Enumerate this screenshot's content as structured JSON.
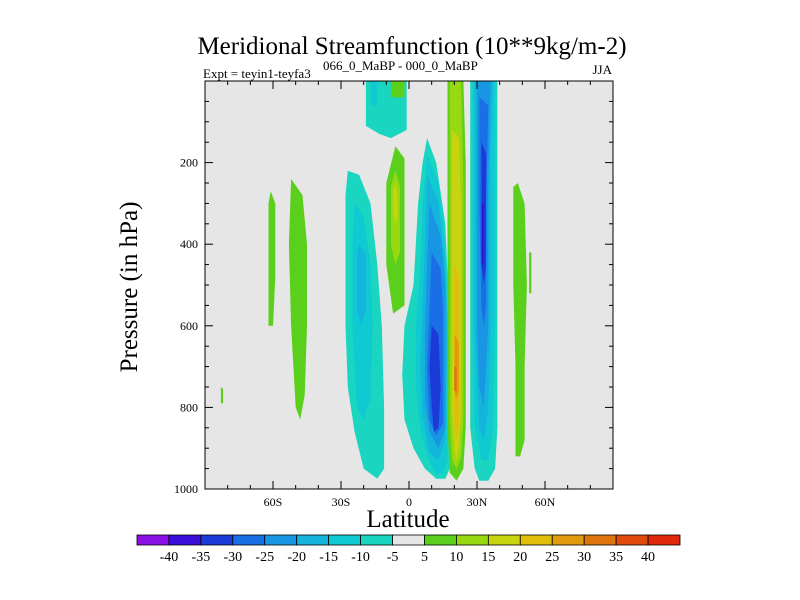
{
  "chart_data": {
    "type": "heatmap",
    "title": "Meridional Streamfunction (10**9kg/m-2)",
    "subtitle_left": "Expt = teyin1-teyfa3",
    "subtitle_superscript": "066_0_MaBP - 000_0_MaBP",
    "subtitle_right": "JJA",
    "xlabel": "Latitude",
    "ylabel": "Pressure (in hPa)",
    "xlim": [
      -90,
      90
    ],
    "ylim": [
      1000,
      0
    ],
    "x_ticks": [
      {
        "value": -60,
        "label": "60S"
      },
      {
        "value": -30,
        "label": "30S"
      },
      {
        "value": 0,
        "label": "0"
      },
      {
        "value": 30,
        "label": "30N"
      },
      {
        "value": 60,
        "label": "60N"
      }
    ],
    "y_ticks": [
      {
        "value": 200,
        "label": "200"
      },
      {
        "value": 400,
        "label": "400"
      },
      {
        "value": 600,
        "label": "600"
      },
      {
        "value": 800,
        "label": "800"
      },
      {
        "value": 1000,
        "label": "1000"
      }
    ],
    "background_color": "#e6e6e6",
    "colorbar": {
      "labels": [
        "-40",
        "-35",
        "-30",
        "-25",
        "-20",
        "-15",
        "-10",
        "-5",
        "5",
        "10",
        "15",
        "20",
        "25",
        "30",
        "35",
        "40"
      ],
      "colors": [
        "#8b10e8",
        "#3c0fd8",
        "#1c3ad8",
        "#1a6ee6",
        "#1896e4",
        "#14b4dc",
        "#10cad2",
        "#1ad6c0",
        "#e6e6e6",
        "#5ad01c",
        "#98d810",
        "#c8d410",
        "#e0be0c",
        "#e09c0c",
        "#e0740c",
        "#e04a0c",
        "#e0280c"
      ]
    },
    "regions": [
      {
        "level": 10,
        "color": "#5ad01c",
        "pts": [
          [
            -61,
            270
          ],
          [
            -59,
            300
          ],
          [
            -59,
            480
          ],
          [
            -60,
            600
          ],
          [
            -62,
            600
          ],
          [
            -62,
            400
          ],
          [
            -62,
            300
          ]
        ]
      },
      {
        "level": 10,
        "color": "#5ad01c",
        "pts": [
          [
            -52,
            240
          ],
          [
            -47,
            280
          ],
          [
            -45,
            400
          ],
          [
            -45,
            600
          ],
          [
            -46,
            770
          ],
          [
            -48,
            830
          ],
          [
            -50,
            800
          ],
          [
            -52,
            600
          ],
          [
            -53,
            400
          ]
        ]
      },
      {
        "level": 10,
        "color": "#5ad01c",
        "pts": [
          [
            -83,
            750
          ],
          [
            -82,
            755
          ],
          [
            -82,
            790
          ],
          [
            -83,
            790
          ]
        ]
      },
      {
        "level": -5,
        "color": "#1ad6c0",
        "pts": [
          [
            -27,
            220
          ],
          [
            -22,
            230
          ],
          [
            -17,
            300
          ],
          [
            -14,
            450
          ],
          [
            -12,
            600
          ],
          [
            -11,
            800
          ],
          [
            -11,
            950
          ],
          [
            -14,
            975
          ],
          [
            -20,
            950
          ],
          [
            -24,
            860
          ],
          [
            -27,
            750
          ],
          [
            -28,
            600
          ],
          [
            -28,
            400
          ],
          [
            -28,
            280
          ]
        ]
      },
      {
        "level": -10,
        "color": "#10cad2",
        "pts": [
          [
            -24,
            300
          ],
          [
            -20,
            330
          ],
          [
            -17,
            450
          ],
          [
            -16,
            600
          ],
          [
            -17,
            780
          ],
          [
            -20,
            830
          ],
          [
            -23,
            800
          ],
          [
            -25,
            600
          ],
          [
            -25,
            400
          ]
        ]
      },
      {
        "level": -15,
        "color": "#14b4dc",
        "pts": [
          [
            -22,
            400
          ],
          [
            -19,
            430
          ],
          [
            -19,
            560
          ],
          [
            -21,
            600
          ],
          [
            -23,
            560
          ],
          [
            -23,
            430
          ]
        ]
      },
      {
        "level": -5,
        "color": "#1ad6c0",
        "pts": [
          [
            -19,
            0
          ],
          [
            -1,
            0
          ],
          [
            -1,
            120
          ],
          [
            -8,
            140
          ],
          [
            -13,
            130
          ],
          [
            -19,
            110
          ]
        ]
      },
      {
        "level": -10,
        "color": "#10cad2",
        "pts": [
          [
            -17,
            0
          ],
          [
            -14,
            0
          ],
          [
            -14,
            60
          ],
          [
            -17,
            60
          ]
        ]
      },
      {
        "level": 10,
        "color": "#5ad01c",
        "pts": [
          [
            -8,
            0
          ],
          [
            -2,
            0
          ],
          [
            -2,
            40
          ],
          [
            -8,
            40
          ]
        ]
      },
      {
        "level": 10,
        "color": "#5ad01c",
        "pts": [
          [
            -6,
            160
          ],
          [
            -2,
            190
          ],
          [
            -2,
            550
          ],
          [
            -7,
            570
          ],
          [
            -10,
            450
          ],
          [
            -10,
            250
          ]
        ]
      },
      {
        "level": 15,
        "color": "#98d810",
        "pts": [
          [
            -6,
            220
          ],
          [
            -4,
            260
          ],
          [
            -4,
            420
          ],
          [
            -6,
            450
          ],
          [
            -8,
            400
          ],
          [
            -8,
            260
          ]
        ]
      },
      {
        "level": 20,
        "color": "#c8d410",
        "pts": [
          [
            -6,
            250
          ],
          [
            -5,
            280
          ],
          [
            -5,
            330
          ],
          [
            -6,
            350
          ],
          [
            -7,
            320
          ],
          [
            -7,
            270
          ]
        ]
      },
      {
        "level": -5,
        "color": "#1ad6c0",
        "pts": [
          [
            8,
            140
          ],
          [
            12,
            200
          ],
          [
            16,
            350
          ],
          [
            18,
            600
          ],
          [
            18,
            950
          ],
          [
            16,
            975
          ],
          [
            12,
            975
          ],
          [
            7,
            950
          ],
          [
            2,
            900
          ],
          [
            -2,
            830
          ],
          [
            -3,
            720
          ],
          [
            -2,
            600
          ],
          [
            2,
            500
          ],
          [
            4,
            300
          ],
          [
            6,
            200
          ]
        ]
      },
      {
        "level": -10,
        "color": "#10cad2",
        "pts": [
          [
            8,
            180
          ],
          [
            13,
            250
          ],
          [
            16,
            400
          ],
          [
            17,
            600
          ],
          [
            17,
            930
          ],
          [
            15,
            960
          ],
          [
            12,
            965
          ],
          [
            8,
            920
          ],
          [
            5,
            850
          ],
          [
            3,
            750
          ],
          [
            3,
            600
          ],
          [
            5,
            450
          ],
          [
            6,
            300
          ]
        ]
      },
      {
        "level": -15,
        "color": "#14b4dc",
        "pts": [
          [
            8,
            230
          ],
          [
            13,
            300
          ],
          [
            16,
            450
          ],
          [
            17,
            600
          ],
          [
            16,
            880
          ],
          [
            13,
            930
          ],
          [
            9,
            910
          ],
          [
            6,
            820
          ],
          [
            5,
            700
          ],
          [
            6,
            550
          ],
          [
            7,
            400
          ]
        ]
      },
      {
        "level": -20,
        "color": "#1896e4",
        "pts": [
          [
            9,
            300
          ],
          [
            14,
            380
          ],
          [
            16,
            500
          ],
          [
            16,
            850
          ],
          [
            13,
            900
          ],
          [
            9,
            860
          ],
          [
            7,
            780
          ],
          [
            7,
            620
          ],
          [
            8,
            450
          ]
        ]
      },
      {
        "level": -25,
        "color": "#1a6ee6",
        "pts": [
          [
            10,
            420
          ],
          [
            14,
            460
          ],
          [
            15,
            560
          ],
          [
            15,
            840
          ],
          [
            12,
            870
          ],
          [
            9,
            830
          ],
          [
            8,
            700
          ],
          [
            9,
            560
          ]
        ]
      },
      {
        "level": -30,
        "color": "#1c3ad8",
        "pts": [
          [
            10,
            600
          ],
          [
            13,
            620
          ],
          [
            14,
            750
          ],
          [
            13,
            850
          ],
          [
            11,
            860
          ],
          [
            10,
            800
          ],
          [
            9,
            700
          ]
        ]
      },
      {
        "level": 10,
        "color": "#5ad01c",
        "pts": [
          [
            17,
            0
          ],
          [
            24,
            0
          ],
          [
            25,
            200
          ],
          [
            25,
            600
          ],
          [
            25,
            850
          ],
          [
            24,
            950
          ],
          [
            21,
            980
          ],
          [
            18,
            960
          ],
          [
            17,
            850
          ],
          [
            17,
            400
          ],
          [
            17,
            150
          ]
        ]
      },
      {
        "level": 15,
        "color": "#98d810",
        "pts": [
          [
            18,
            0
          ],
          [
            23,
            0
          ],
          [
            24,
            250
          ],
          [
            24,
            600
          ],
          [
            24,
            830
          ],
          [
            23,
            920
          ],
          [
            21,
            950
          ],
          [
            19,
            930
          ],
          [
            18,
            830
          ],
          [
            18,
            400
          ],
          [
            18,
            150
          ]
        ]
      },
      {
        "level": 20,
        "color": "#c8d410",
        "pts": [
          [
            19,
            120
          ],
          [
            22,
            140
          ],
          [
            23,
            300
          ],
          [
            23,
            600
          ],
          [
            23,
            800
          ],
          [
            22,
            900
          ],
          [
            21,
            930
          ],
          [
            20,
            900
          ],
          [
            19,
            800
          ],
          [
            19,
            500
          ],
          [
            19,
            250
          ]
        ]
      },
      {
        "level": 25,
        "color": "#e0be0c",
        "pts": [
          [
            20,
            450
          ],
          [
            22,
            480
          ],
          [
            22,
            600
          ],
          [
            22,
            850
          ],
          [
            21,
            880
          ],
          [
            20,
            850
          ],
          [
            20,
            600
          ]
        ]
      },
      {
        "level": 30,
        "color": "#e09c0c",
        "pts": [
          [
            20,
            620
          ],
          [
            22,
            640
          ],
          [
            22,
            760
          ],
          [
            21,
            780
          ],
          [
            20,
            760
          ]
        ]
      },
      {
        "level": 35,
        "color": "#e0740c",
        "pts": [
          [
            20,
            700
          ],
          [
            21,
            700
          ],
          [
            21,
            760
          ],
          [
            20,
            760
          ]
        ]
      },
      {
        "level": -5,
        "color": "#1ad6c0",
        "pts": [
          [
            27,
            0
          ],
          [
            39,
            0
          ],
          [
            39,
            200
          ],
          [
            39,
            600
          ],
          [
            39,
            850
          ],
          [
            38,
            950
          ],
          [
            35,
            980
          ],
          [
            31,
            980
          ],
          [
            29,
            950
          ],
          [
            27,
            850
          ],
          [
            27,
            600
          ],
          [
            27,
            200
          ]
        ]
      },
      {
        "level": -10,
        "color": "#10cad2",
        "pts": [
          [
            28,
            0
          ],
          [
            38,
            0
          ],
          [
            38,
            200
          ],
          [
            38,
            600
          ],
          [
            37,
            850
          ],
          [
            35,
            930
          ],
          [
            32,
            930
          ],
          [
            29,
            850
          ],
          [
            28,
            600
          ],
          [
            28,
            200
          ]
        ]
      },
      {
        "level": -15,
        "color": "#14b4dc",
        "pts": [
          [
            29,
            0
          ],
          [
            37,
            0
          ],
          [
            36,
            200
          ],
          [
            36,
            600
          ],
          [
            35,
            800
          ],
          [
            33,
            880
          ],
          [
            31,
            850
          ],
          [
            30,
            750
          ],
          [
            29,
            600
          ],
          [
            29,
            200
          ]
        ]
      },
      {
        "level": -20,
        "color": "#1896e4",
        "pts": [
          [
            30,
            0
          ],
          [
            36,
            0
          ],
          [
            35,
            250
          ],
          [
            35,
            600
          ],
          [
            33,
            800
          ],
          [
            31,
            750
          ],
          [
            30,
            600
          ],
          [
            30,
            250
          ]
        ]
      },
      {
        "level": -25,
        "color": "#1a6ee6",
        "pts": [
          [
            31,
            40
          ],
          [
            35,
            60
          ],
          [
            34,
            300
          ],
          [
            34,
            550
          ],
          [
            33,
            600
          ],
          [
            32,
            560
          ],
          [
            31,
            300
          ]
        ]
      },
      {
        "level": -30,
        "color": "#1c3ad8",
        "pts": [
          [
            32,
            150
          ],
          [
            34,
            180
          ],
          [
            34,
            450
          ],
          [
            33,
            500
          ],
          [
            32,
            450
          ]
        ]
      },
      {
        "level": -35,
        "color": "#3c0fd8",
        "pts": [
          [
            32,
            300
          ],
          [
            33,
            300
          ],
          [
            33,
            450
          ],
          [
            32,
            450
          ]
        ]
      },
      {
        "level": 10,
        "color": "#5ad01c",
        "pts": [
          [
            46,
            260
          ],
          [
            48,
            250
          ],
          [
            51,
            300
          ],
          [
            52,
            500
          ],
          [
            51,
            700
          ],
          [
            51,
            880
          ],
          [
            49,
            920
          ],
          [
            47,
            920
          ],
          [
            47,
            700
          ],
          [
            46,
            500
          ]
        ]
      },
      {
        "level": 10,
        "color": "#5ad01c",
        "pts": [
          [
            53,
            420
          ],
          [
            54,
            420
          ],
          [
            54,
            520
          ],
          [
            53,
            520
          ]
        ]
      }
    ]
  }
}
